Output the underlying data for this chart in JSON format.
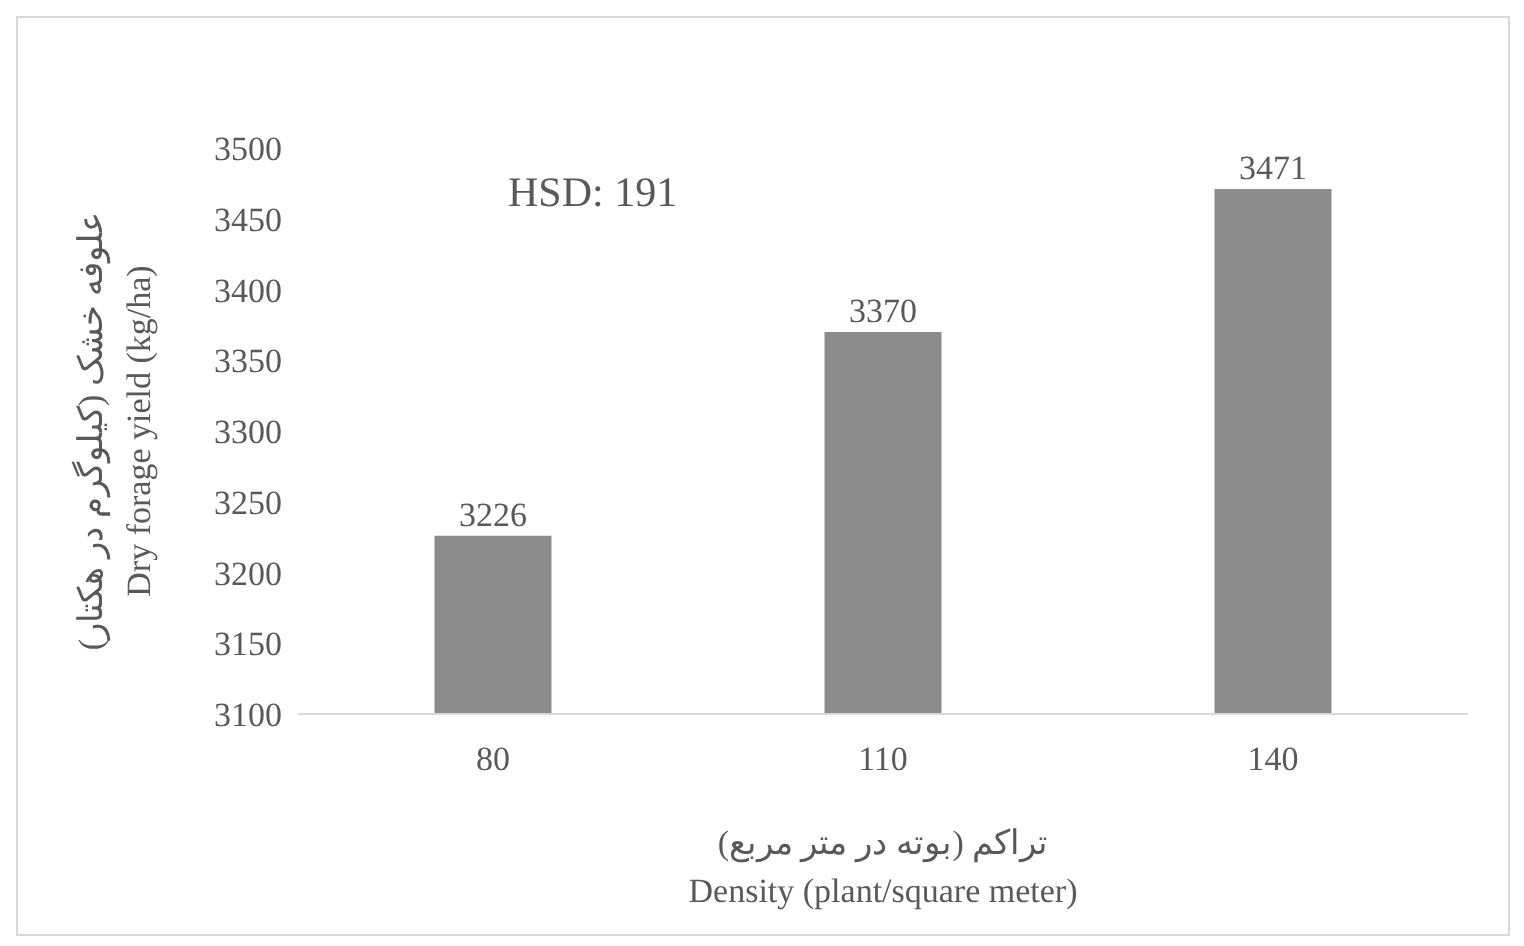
{
  "chart_data": {
    "type": "bar",
    "categories": [
      "80",
      "110",
      "140"
    ],
    "values": [
      3226,
      3370,
      3471
    ],
    "color": "#8c8c8c",
    "ylabel": "علوفه خشک (کیلوگرم در هکتار)\nDry forage yield (kg/ha)",
    "xlabel": "تراکم (بوته در متر مربع)\nDensity (plant/square meter)",
    "ylim": [
      3100,
      3500
    ],
    "yticks": [
      3100,
      3150,
      3200,
      3250,
      3300,
      3350,
      3400,
      3450,
      3500
    ],
    "data_labels": true,
    "annotations": [
      "HSD: 191"
    ]
  }
}
